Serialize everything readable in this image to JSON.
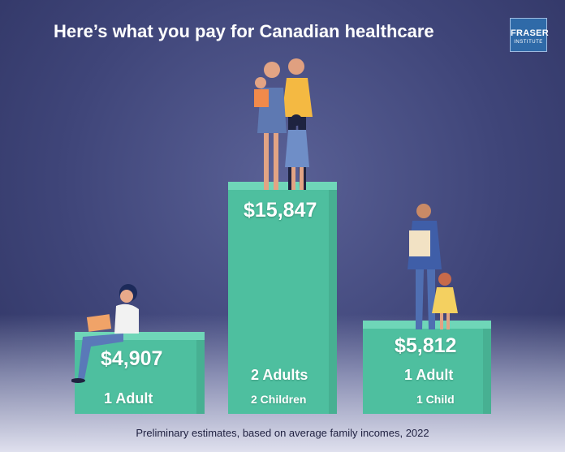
{
  "title": "Here’s what you pay for Canadian healthcare",
  "logo": {
    "line1": "FRASER",
    "line2": "INSTITUTE"
  },
  "footnote": "Preliminary estimates, based on average family incomes, 2022",
  "colors": {
    "plinth": "#4ebf9f",
    "plinth_top": "#6fd6b8",
    "background": "#3f4579"
  },
  "chart_data": {
    "type": "bar",
    "title": "Here’s what you pay for Canadian healthcare",
    "categories": [
      "1 Adult",
      "2 Adults 2 Children",
      "1 Adult 1 Child"
    ],
    "values": [
      4907,
      15847,
      5812
    ],
    "unit": "$",
    "labels": [
      "$4,907",
      "$15,847",
      "$5,812"
    ],
    "bars": [
      {
        "amount": "$4,907",
        "line1": "1 Adult",
        "line2": ""
      },
      {
        "amount": "$15,847",
        "line1": "2 Adults",
        "line2": "2 Children"
      },
      {
        "amount": "$5,812",
        "line1": "1 Adult",
        "line2": "1 Child"
      }
    ]
  }
}
